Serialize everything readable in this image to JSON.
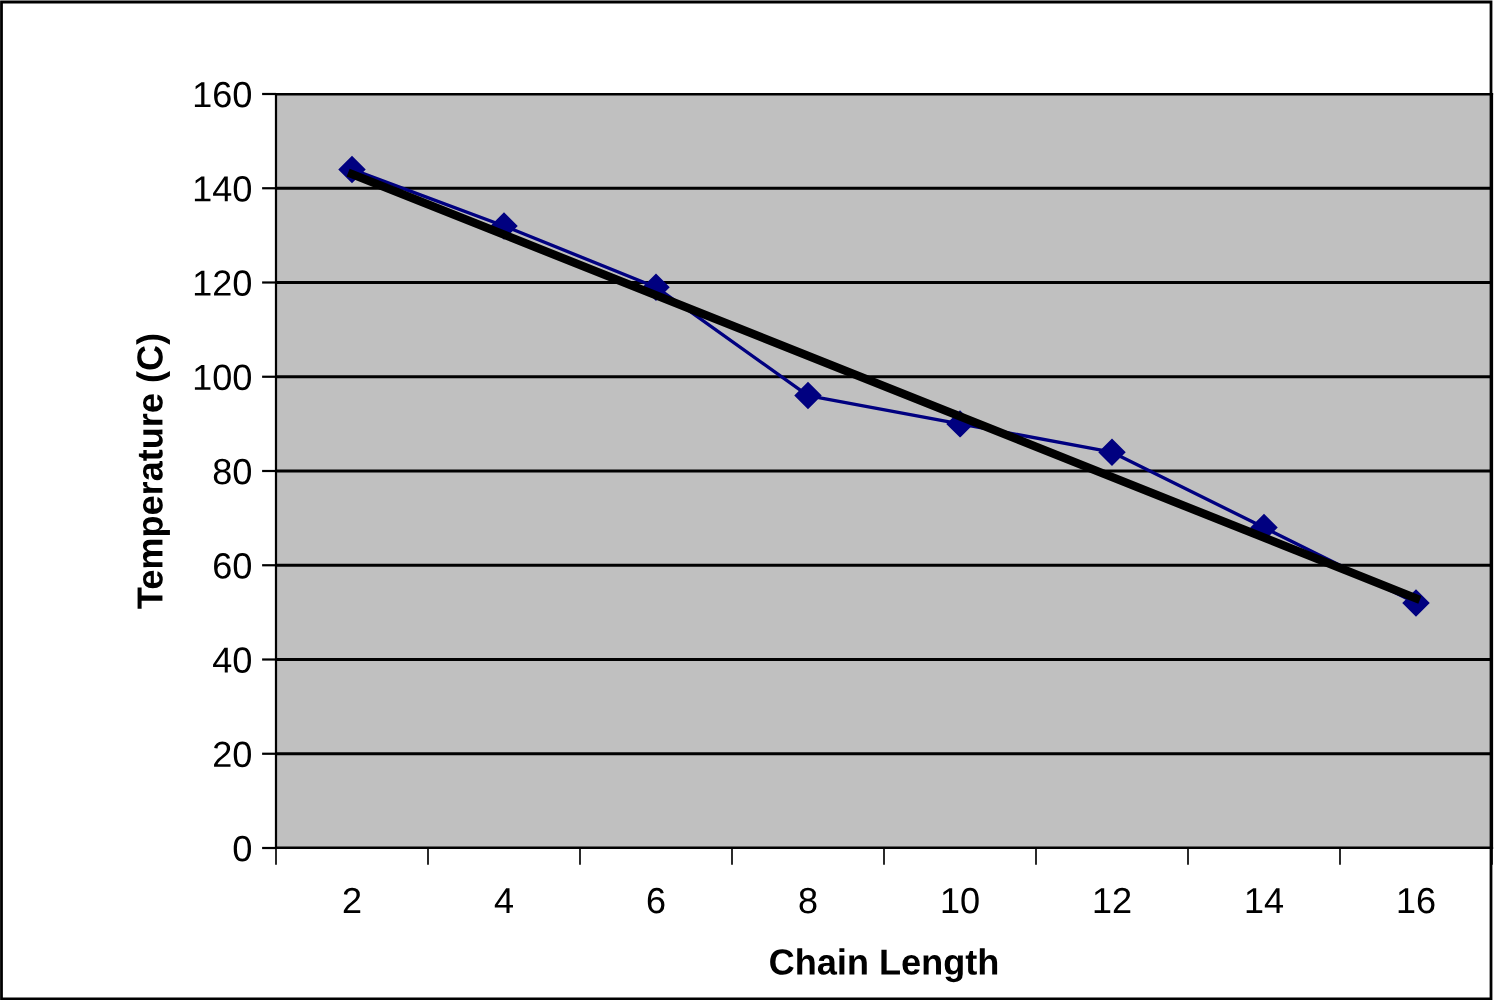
{
  "chart_data": {
    "type": "line",
    "xlabel": "Chain Length",
    "ylabel": "Temperature (C)",
    "categories": [
      "2",
      "4",
      "6",
      "8",
      "10",
      "12",
      "14",
      "16"
    ],
    "series": [
      {
        "color": "#000080",
        "values": [
          144,
          132,
          119,
          96,
          90,
          84,
          68,
          52
        ],
        "marker": "diamond"
      },
      {
        "color": "#000000",
        "x": [
          "2",
          "16"
        ],
        "values": [
          143,
          53
        ],
        "marker": "none"
      }
    ],
    "ylim": [
      0,
      160
    ],
    "yticks": [
      0,
      20,
      40,
      60,
      80,
      100,
      120,
      140,
      160
    ],
    "grid": "y",
    "legend": false
  }
}
